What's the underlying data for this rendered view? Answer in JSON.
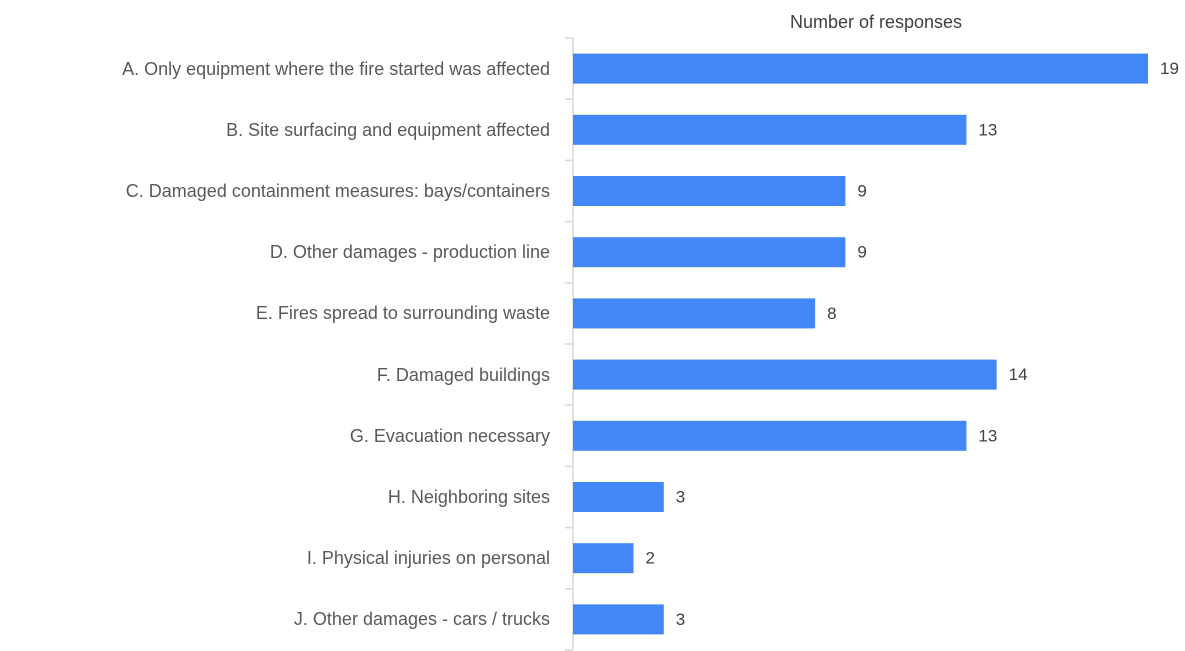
{
  "chart_data": {
    "type": "bar",
    "orientation": "horizontal",
    "title": "Number of responses",
    "categories": [
      "A. Only equipment where the fire started was affected",
      "B. Site surfacing and equipment affected",
      "C. Damaged containment measures: bays/containers",
      "D. Other damages - production line",
      "E. Fires spread to surrounding waste",
      "F. Damaged buildings",
      "G. Evacuation necessary",
      "H. Neighboring sites",
      "I. Physical injuries on personal",
      "J. Other damages - cars / trucks"
    ],
    "values": [
      19,
      13,
      9,
      9,
      8,
      14,
      13,
      3,
      2,
      3
    ],
    "color": "#4287f5"
  }
}
